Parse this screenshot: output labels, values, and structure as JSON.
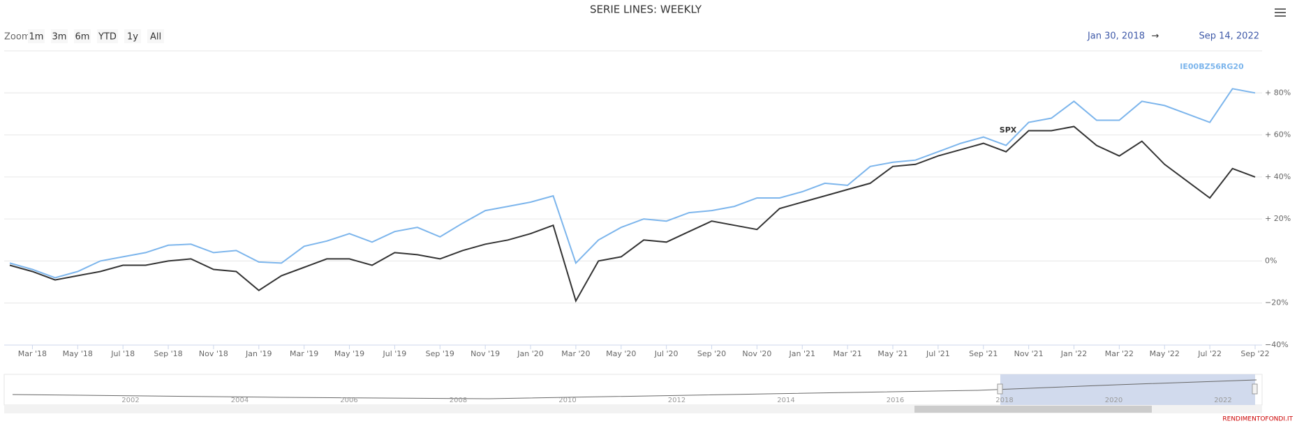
{
  "chart_data": {
    "type": "line",
    "title": "SERIE LINES: WEEKLY",
    "zoom_label": "Zoom",
    "zoom_buttons": [
      "1m",
      "3m",
      "6m",
      "YTD",
      "1y",
      "All"
    ],
    "range_from": "Jan 30, 2018",
    "range_arrow": "→",
    "range_to": "Sep 14, 2022",
    "credits": "RENDIMENTOFONDI.IT",
    "navigator_labels": [
      "2002",
      "2004",
      "2006",
      "2008",
      "2010",
      "2012",
      "2014",
      "2016",
      "2018",
      "2020",
      "2022"
    ],
    "x": [
      "2018-02",
      "2018-03",
      "2018-04",
      "2018-05",
      "2018-06",
      "2018-07",
      "2018-08",
      "2018-09",
      "2018-10",
      "2018-11",
      "2018-12",
      "2019-01",
      "2019-02",
      "2019-03",
      "2019-04",
      "2019-05",
      "2019-06",
      "2019-07",
      "2019-08",
      "2019-09",
      "2019-10",
      "2019-11",
      "2019-12",
      "2020-01",
      "2020-02",
      "2020-03",
      "2020-04",
      "2020-05",
      "2020-06",
      "2020-07",
      "2020-08",
      "2020-09",
      "2020-10",
      "2020-11",
      "2020-12",
      "2021-01",
      "2021-02",
      "2021-03",
      "2021-04",
      "2021-05",
      "2021-06",
      "2021-07",
      "2021-08",
      "2021-09",
      "2021-10",
      "2021-11",
      "2021-12",
      "2022-01",
      "2022-02",
      "2022-03",
      "2022-04",
      "2022-05",
      "2022-06",
      "2022-07",
      "2022-08",
      "2022-09"
    ],
    "xlim": [
      "2018-02",
      "2022-09"
    ],
    "xticks": [
      {
        "value": "2018-03",
        "label": "Mar '18"
      },
      {
        "value": "2018-05",
        "label": "May '18"
      },
      {
        "value": "2018-07",
        "label": "Jul '18"
      },
      {
        "value": "2018-09",
        "label": "Sep '18"
      },
      {
        "value": "2018-11",
        "label": "Nov '18"
      },
      {
        "value": "2019-01",
        "label": "Jan '19"
      },
      {
        "value": "2019-03",
        "label": "Mar '19"
      },
      {
        "value": "2019-05",
        "label": "May '19"
      },
      {
        "value": "2019-07",
        "label": "Jul '19"
      },
      {
        "value": "2019-09",
        "label": "Sep '19"
      },
      {
        "value": "2019-11",
        "label": "Nov '19"
      },
      {
        "value": "2020-01",
        "label": "Jan '20"
      },
      {
        "value": "2020-03",
        "label": "Mar '20"
      },
      {
        "value": "2020-05",
        "label": "May '20"
      },
      {
        "value": "2020-07",
        "label": "Jul '20"
      },
      {
        "value": "2020-09",
        "label": "Sep '20"
      },
      {
        "value": "2020-11",
        "label": "Nov '20"
      },
      {
        "value": "2021-01",
        "label": "Jan '21"
      },
      {
        "value": "2021-03",
        "label": "Mar '21"
      },
      {
        "value": "2021-05",
        "label": "May '21"
      },
      {
        "value": "2021-07",
        "label": "Jul '21"
      },
      {
        "value": "2021-09",
        "label": "Sep '21"
      },
      {
        "value": "2021-11",
        "label": "Nov '21"
      },
      {
        "value": "2022-01",
        "label": "Jan '22"
      },
      {
        "value": "2022-03",
        "label": "Mar '22"
      },
      {
        "value": "2022-05",
        "label": "May '22"
      },
      {
        "value": "2022-07",
        "label": "Jul '22"
      },
      {
        "value": "2022-09",
        "label": "Sep '22"
      }
    ],
    "ylim": [
      -40,
      100
    ],
    "yticks": [
      {
        "value": -40,
        "label": "−40%"
      },
      {
        "value": -20,
        "label": "−20%"
      },
      {
        "value": 0,
        "label": "0%"
      },
      {
        "value": 20,
        "label": "+ 20%"
      },
      {
        "value": 40,
        "label": "+ 40%"
      },
      {
        "value": 60,
        "label": "+ 60%"
      },
      {
        "value": 80,
        "label": "+ 80%"
      }
    ],
    "grid": true,
    "series": [
      {
        "name": "IE00BZ56RG20",
        "color": "#7cb5ec",
        "values": [
          -1,
          -4,
          -8,
          -5,
          0,
          2,
          4,
          7.5,
          8,
          4,
          5,
          -0.5,
          -1,
          7,
          9.5,
          13,
          9,
          14,
          16,
          11.5,
          18,
          24,
          26,
          28,
          31,
          -1,
          10,
          16,
          20,
          19,
          23,
          24,
          26,
          30,
          30,
          33,
          37,
          36,
          45,
          47,
          48,
          52,
          56,
          59,
          55,
          66,
          68,
          76,
          67,
          67,
          76,
          74,
          70,
          66,
          82,
          80
        ]
      },
      {
        "name": "SPX",
        "color": "#333333",
        "values": [
          -2,
          -5,
          -9,
          -7,
          -5,
          -2,
          -2,
          0,
          1,
          -4,
          -5,
          -14,
          -7,
          -3,
          1,
          1,
          -2,
          4,
          3,
          1,
          5,
          8,
          10,
          13,
          17,
          -19,
          0,
          2,
          10,
          9,
          14,
          19,
          17,
          15,
          25,
          28,
          31,
          34,
          37,
          45,
          46,
          50,
          53,
          56,
          52,
          62,
          62,
          64,
          55,
          50,
          57,
          46,
          38,
          30,
          44,
          40
        ]
      }
    ]
  }
}
